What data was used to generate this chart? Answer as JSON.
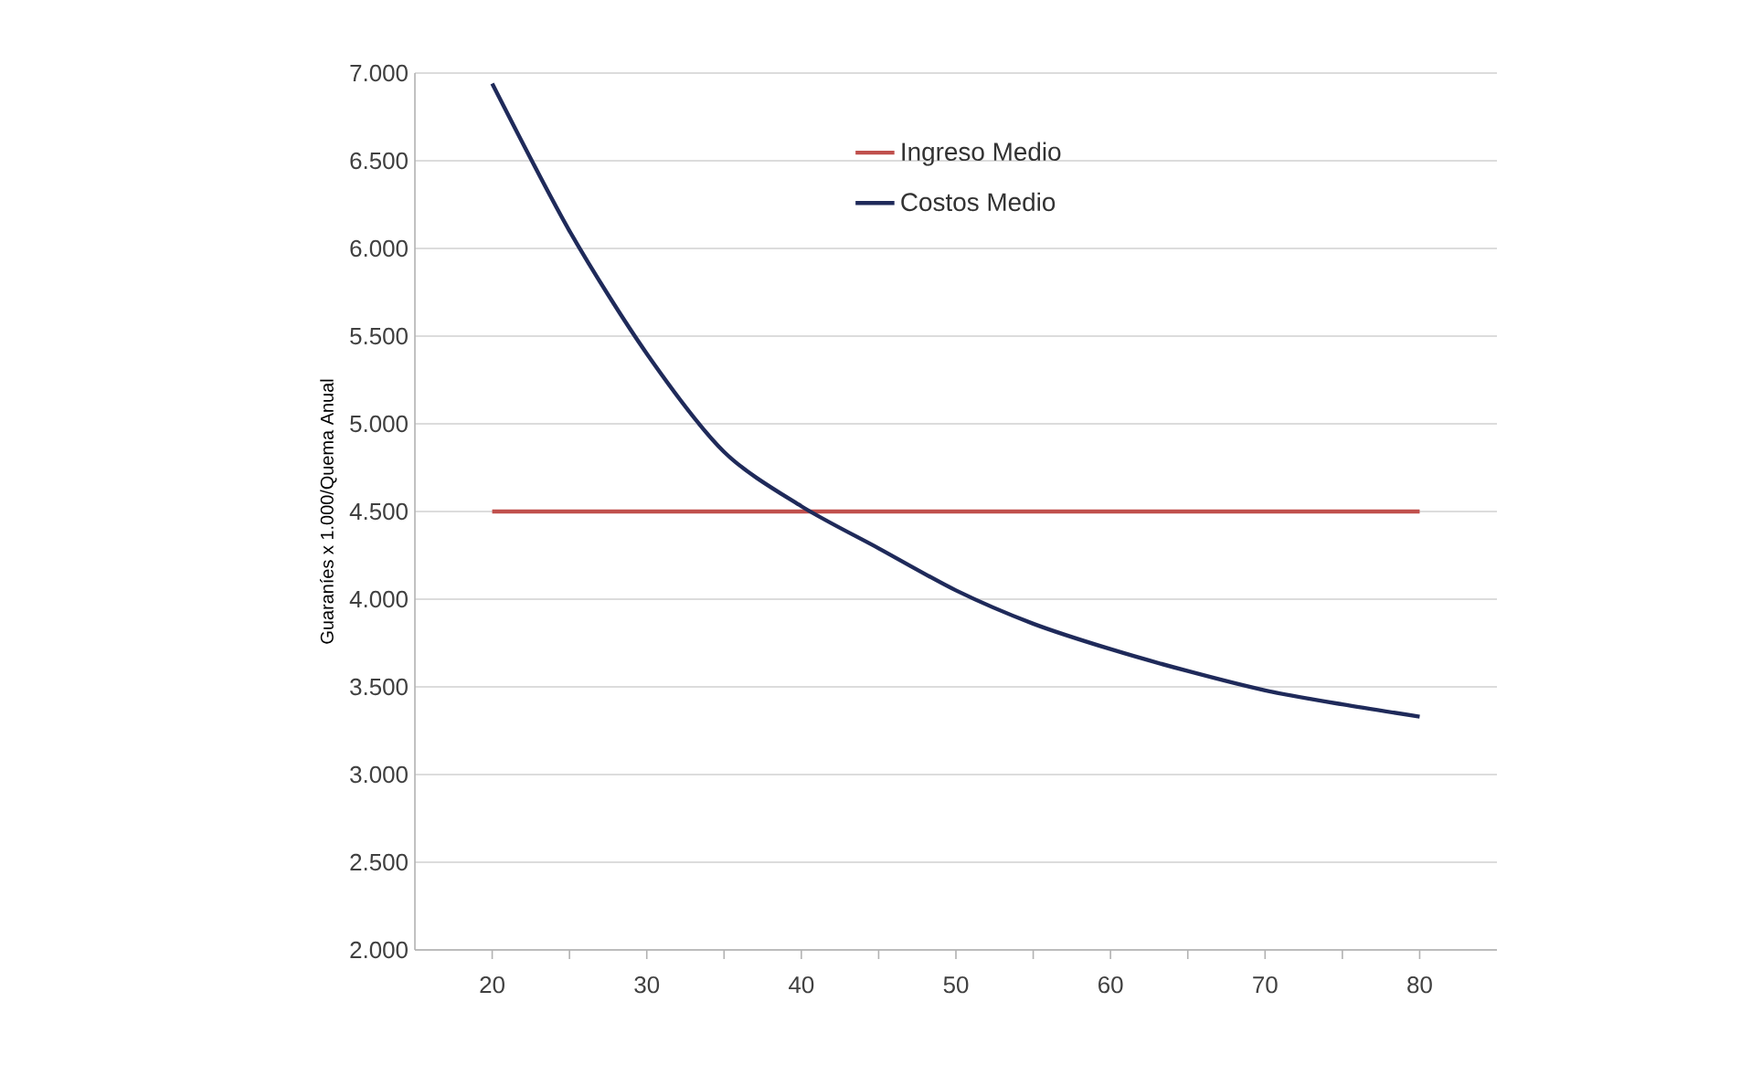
{
  "chart_data": {
    "type": "line",
    "ylabel": "Guaraníes x 1.000/Quema Anual",
    "x": [
      20,
      25,
      30,
      35,
      40,
      45,
      50,
      55,
      60,
      65,
      70,
      75,
      80
    ],
    "series": [
      {
        "name": "Ingreso Medio",
        "color": "#c0504d",
        "values": [
          4500,
          4500,
          4500,
          4500,
          4500,
          4500,
          4500,
          4500,
          4500,
          4500,
          4500,
          4500,
          4500
        ]
      },
      {
        "name": "Costos Medio",
        "color": "#1f2a5a",
        "values": [
          6940,
          6100,
          5400,
          4840,
          4530,
          4290,
          4050,
          3860,
          3715,
          3590,
          3480,
          3400,
          3330
        ]
      }
    ],
    "xlim": [
      15,
      85
    ],
    "xticks": [
      20,
      {
        "value": 25,
        "label": null
      },
      30,
      {
        "value": 35,
        "label": null
      },
      40,
      {
        "value": 45,
        "label": null
      },
      50,
      {
        "value": 55,
        "label": null
      },
      60,
      {
        "value": 65,
        "label": null
      },
      70,
      {
        "value": 75,
        "label": null
      },
      80
    ],
    "ylim": [
      2000,
      7000
    ],
    "yticks": [
      {
        "value": 2000,
        "label": "2.000"
      },
      {
        "value": 2500,
        "label": "2.500"
      },
      {
        "value": 3000,
        "label": "3.000"
      },
      {
        "value": 3500,
        "label": "3.500"
      },
      {
        "value": 4000,
        "label": "4.000"
      },
      {
        "value": 4500,
        "label": "4.500"
      },
      {
        "value": 5000,
        "label": "5.000"
      },
      {
        "value": 5500,
        "label": "5.500"
      },
      {
        "value": 6000,
        "label": "6.000"
      },
      {
        "value": 6500,
        "label": "6.500"
      },
      {
        "value": 7000,
        "label": "7.000"
      }
    ],
    "grid": "y",
    "legend": "top",
    "marker": "none",
    "line_style": "solid"
  }
}
